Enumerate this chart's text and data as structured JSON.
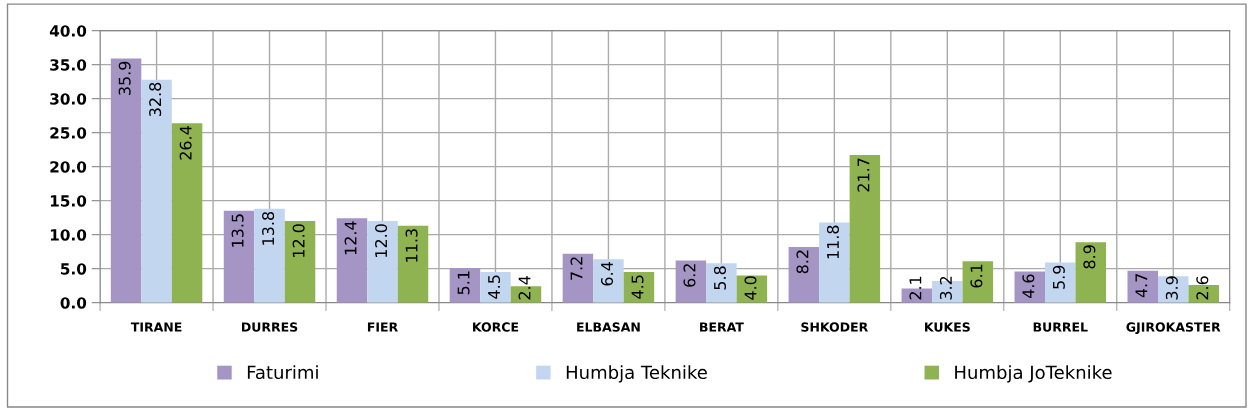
{
  "chart_data": {
    "type": "bar",
    "categories": [
      "TIRANE",
      "DURRES",
      "FIER",
      "KORCE",
      "ELBASAN",
      "BERAT",
      "SHKODER",
      "KUKES",
      "BURREL",
      "GJIROKASTER"
    ],
    "series": [
      {
        "name": "Faturimi",
        "color": "#a495c4",
        "values": [
          35.9,
          13.5,
          12.4,
          5.1,
          7.2,
          6.2,
          8.2,
          2.1,
          4.6,
          4.7
        ],
        "value_labels": [
          "35.9",
          "13.5",
          "12.4",
          "5.1",
          "7.2",
          "6.2",
          "8.2",
          "2.1",
          "4.6",
          "4.7"
        ]
      },
      {
        "name": "Humbja Teknike",
        "color": "#c3d6ef",
        "values": [
          32.8,
          13.8,
          12.0,
          4.5,
          6.4,
          5.8,
          11.8,
          3.2,
          5.9,
          3.9
        ],
        "value_labels": [
          "32.8",
          "13.8",
          "12.0",
          "4.5",
          "6.4",
          "5.8",
          "11.8",
          "3.2",
          "5.9",
          "3.9"
        ]
      },
      {
        "name": "Humbja JoTeknike",
        "color": "#8eb350",
        "values": [
          26.4,
          12.0,
          11.3,
          2.4,
          4.5,
          4.0,
          21.7,
          6.1,
          8.9,
          2.6
        ],
        "value_labels": [
          "26.4",
          "12.0",
          "11.3",
          "2.4",
          "4.5",
          "4.0",
          "21.7",
          "6.1",
          "8.9",
          "2.6"
        ]
      }
    ],
    "ylim": [
      0,
      40
    ],
    "yticks": [
      {
        "value": 0,
        "label": "0.0"
      },
      {
        "value": 5,
        "label": "5.0"
      },
      {
        "value": 10,
        "label": "10.0"
      },
      {
        "value": 15,
        "label": "15.0"
      },
      {
        "value": 20,
        "label": "20.0"
      },
      {
        "value": 25,
        "label": "25.0"
      },
      {
        "value": 30,
        "label": "30.0"
      },
      {
        "value": 35,
        "label": "35.0"
      },
      {
        "value": 40,
        "label": "40.0"
      }
    ],
    "grid": true,
    "legend": "bottom"
  }
}
